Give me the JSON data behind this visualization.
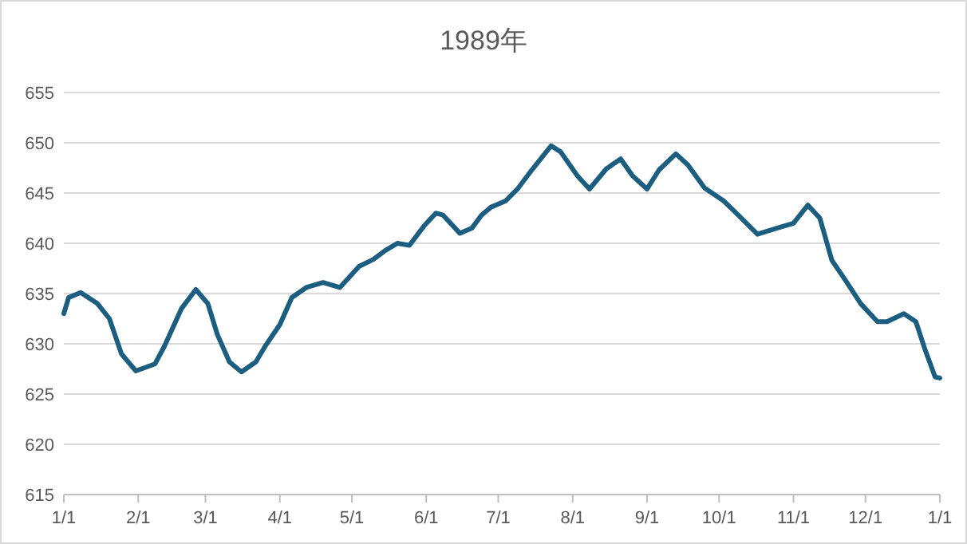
{
  "chart_data": {
    "type": "line",
    "title": "1989年",
    "x": [
      "1989-01-01",
      "1989-01-03",
      "1989-01-08",
      "1989-01-15",
      "1989-01-20",
      "1989-01-25",
      "1989-01-31",
      "1989-02-08",
      "1989-02-12",
      "1989-02-19",
      "1989-02-25",
      "1989-03-02",
      "1989-03-06",
      "1989-03-11",
      "1989-03-16",
      "1989-03-22",
      "1989-03-26",
      "1989-04-01",
      "1989-04-06",
      "1989-04-12",
      "1989-04-19",
      "1989-04-26",
      "1989-05-04",
      "1989-05-10",
      "1989-05-15",
      "1989-05-20",
      "1989-05-25",
      "1989-05-31",
      "1989-06-05",
      "1989-06-08",
      "1989-06-15",
      "1989-06-20",
      "1989-06-24",
      "1989-06-28",
      "1989-07-04",
      "1989-07-09",
      "1989-07-15",
      "1989-07-23",
      "1989-07-27",
      "1989-08-03",
      "1989-08-08",
      "1989-08-15",
      "1989-08-21",
      "1989-08-26",
      "1989-09-01",
      "1989-09-06",
      "1989-09-13",
      "1989-09-18",
      "1989-09-25",
      "1989-10-03",
      "1989-10-09",
      "1989-10-17",
      "1989-10-25",
      "1989-11-01",
      "1989-11-07",
      "1989-11-12",
      "1989-11-17",
      "1989-11-23",
      "1989-11-29",
      "1989-12-06",
      "1989-12-10",
      "1989-12-17",
      "1989-12-22",
      "1989-12-26",
      "1989-12-30",
      "1990-01-01"
    ],
    "series": [
      {
        "color": "#1b5e80",
        "values": [
          633.0,
          634.6,
          635.1,
          634.0,
          632.5,
          629.0,
          627.3,
          628.0,
          629.8,
          633.5,
          635.4,
          634.0,
          630.9,
          628.2,
          627.2,
          628.2,
          629.8,
          631.9,
          634.6,
          635.6,
          636.1,
          635.6,
          637.7,
          638.4,
          639.3,
          640.0,
          639.8,
          641.7,
          643.0,
          642.8,
          641.0,
          641.5,
          642.8,
          643.6,
          644.2,
          645.4,
          647.3,
          649.7,
          649.1,
          646.7,
          645.4,
          647.4,
          648.4,
          646.7,
          645.4,
          647.3,
          648.9,
          647.8,
          645.5,
          644.2,
          642.8,
          640.9,
          641.5,
          642.0,
          643.8,
          642.5,
          638.3,
          636.2,
          634.0,
          632.2,
          632.2,
          633.0,
          632.2,
          629.3,
          626.7,
          626.6
        ]
      }
    ],
    "xlim": [
      "1989-01-01",
      "1990-01-01"
    ],
    "xticks": [
      {
        "value": "1989-01-01",
        "label": "1/1"
      },
      {
        "value": "1989-02-01",
        "label": "2/1"
      },
      {
        "value": "1989-03-01",
        "label": "3/1"
      },
      {
        "value": "1989-04-01",
        "label": "4/1"
      },
      {
        "value": "1989-05-01",
        "label": "5/1"
      },
      {
        "value": "1989-06-01",
        "label": "6/1"
      },
      {
        "value": "1989-07-01",
        "label": "7/1"
      },
      {
        "value": "1989-08-01",
        "label": "8/1"
      },
      {
        "value": "1989-09-01",
        "label": "9/1"
      },
      {
        "value": "1989-10-01",
        "label": "10/1"
      },
      {
        "value": "1989-11-01",
        "label": "11/1"
      },
      {
        "value": "1989-12-01",
        "label": "12/1"
      },
      {
        "value": "1990-01-01",
        "label": "1/1"
      }
    ],
    "ylim": [
      615,
      655
    ],
    "yticks": [
      615,
      620,
      625,
      630,
      635,
      640,
      645,
      650,
      655
    ],
    "grid": "y"
  }
}
